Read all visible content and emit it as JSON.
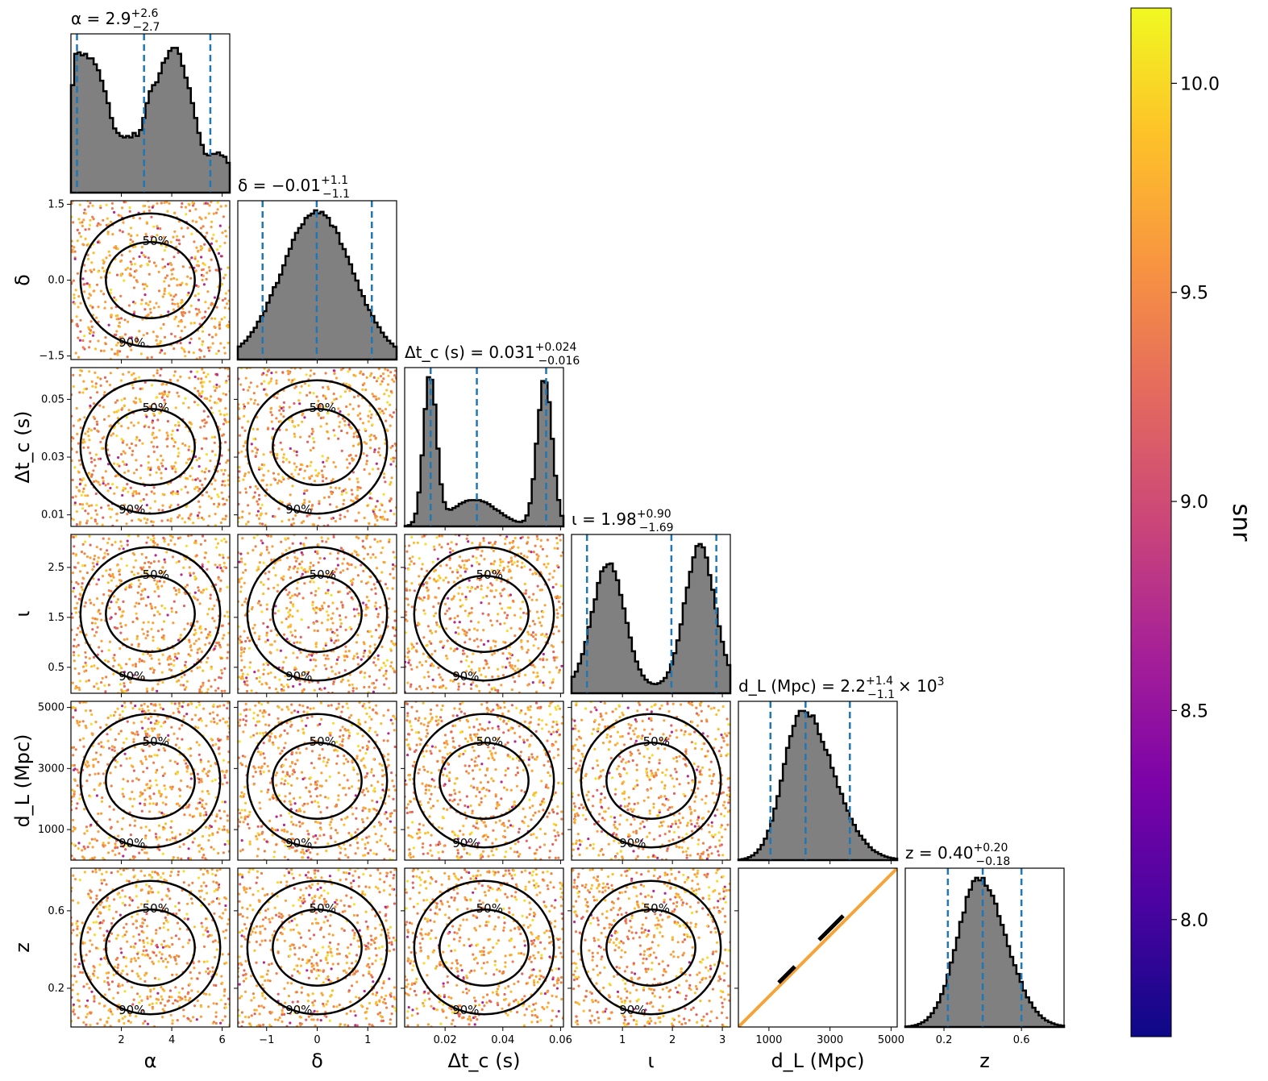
{
  "chart_data": {
    "type": "corner",
    "parameters": [
      {
        "key": "alpha",
        "symbol": "α",
        "axis_label": "α",
        "title": "α = 2.9",
        "median": 2.9,
        "err_plus": 2.6,
        "err_minus": 2.7,
        "sup": "+2.6",
        "sub": "−2.7",
        "range": [
          0.0,
          6.3
        ],
        "ticks": [
          2,
          4,
          6
        ],
        "tick_labels": [
          "2",
          "4",
          "6"
        ],
        "quantiles": [
          0.24,
          2.9,
          5.53
        ],
        "histogram": [
          0.72,
          0.93,
          0.94,
          0.92,
          0.93,
          0.9,
          0.9,
          0.86,
          0.82,
          0.75,
          0.68,
          0.6,
          0.5,
          0.43,
          0.4,
          0.38,
          0.37,
          0.38,
          0.37,
          0.4,
          0.38,
          0.42,
          0.5,
          0.6,
          0.68,
          0.72,
          0.74,
          0.8,
          0.87,
          0.9,
          0.95,
          0.97,
          0.97,
          0.93,
          0.85,
          0.77,
          0.7,
          0.6,
          0.5,
          0.4,
          0.32,
          0.26,
          0.25,
          0.26,
          0.26,
          0.27,
          0.25,
          0.24,
          0.2
        ]
      },
      {
        "key": "delta",
        "symbol": "δ",
        "axis_label": "δ",
        "title": "δ = −0.01",
        "median": -0.01,
        "err_plus": 1.1,
        "err_minus": 1.1,
        "sup": "+1.1",
        "sub": "−1.1",
        "range": [
          -1.57,
          1.57
        ],
        "ticks": [
          -1,
          0,
          1
        ],
        "tick_labels": [
          "−1",
          "0",
          "1"
        ],
        "ticks_y": [
          -1.5,
          0,
          1.5
        ],
        "tick_labels_y": [
          "−1.5",
          "0.0",
          "1.5"
        ],
        "quantiles": [
          -1.08,
          -0.01,
          1.08
        ]
      },
      {
        "key": "dtc",
        "symbol": "Δt_c (s)",
        "axis_label": "Δt_c (s)",
        "title": "Δt_c (s) = 0.031",
        "median": 0.031,
        "err_plus": 0.024,
        "err_minus": 0.016,
        "sup": "+0.024",
        "sub": "−0.016",
        "range": [
          0.006,
          0.061
        ],
        "ticks": [
          0.02,
          0.04,
          0.06
        ],
        "tick_labels": [
          "0.02",
          "0.04",
          "0.06"
        ],
        "ticks_y": [
          0.01,
          0.03,
          0.05
        ],
        "tick_labels_y": [
          "0.01",
          "0.03",
          "0.05"
        ],
        "quantiles": [
          0.015,
          0.031,
          0.055
        ]
      },
      {
        "key": "iota",
        "symbol": "ι",
        "axis_label": "ι",
        "title": "ι = 1.98",
        "median": 1.98,
        "err_plus": 0.9,
        "err_minus": 1.69,
        "sup": "+0.90",
        "sub": "−1.69",
        "range": [
          -0.02,
          3.16
        ],
        "ticks": [
          1,
          2,
          3
        ],
        "tick_labels": [
          "1",
          "2",
          "3"
        ],
        "ticks_y": [
          0.5,
          1.5,
          2.5
        ],
        "tick_labels_y": [
          "0.5",
          "1.5",
          "2.5"
        ],
        "quantiles": [
          0.29,
          1.98,
          2.88
        ]
      },
      {
        "key": "dL",
        "symbol": "d_L (Mpc)",
        "axis_label": "d_L (Mpc)",
        "title": "d_L (Mpc) = 2.2",
        "median": 2200,
        "err_plus": 1400,
        "err_minus": 1100,
        "sup": "+1.4",
        "sub": "−1.1",
        "title_suffix": "× 10",
        "title_exp": "3",
        "range": [
          0,
          5200
        ],
        "ticks": [
          1000,
          3000,
          5000
        ],
        "tick_labels": [
          "1000",
          "3000",
          "5000"
        ],
        "ticks_y": [
          1000,
          3000,
          5000
        ],
        "tick_labels_y": [
          "1000",
          "3000",
          "5000"
        ],
        "quantiles": [
          1050,
          2200,
          3650
        ]
      },
      {
        "key": "z",
        "symbol": "z",
        "axis_label": "z",
        "title": "z = 0.40",
        "median": 0.4,
        "err_plus": 0.2,
        "err_minus": 0.18,
        "sup": "+0.20",
        "sub": "−0.18",
        "range": [
          0.0,
          0.82
        ],
        "ticks": [
          0.2,
          0.6
        ],
        "tick_labels": [
          "0.2",
          "0.6"
        ],
        "ticks_y": [
          0.2,
          0.6
        ],
        "tick_labels_y": [
          "0.2",
          "0.6"
        ],
        "quantiles": [
          0.22,
          0.4,
          0.6
        ]
      }
    ],
    "contour_levels": [
      "50%",
      "90%"
    ],
    "colorbar": {
      "label": "snr",
      "range": [
        7.72,
        10.18
      ],
      "ticks": [
        8.0,
        8.5,
        9.0,
        9.5,
        10.0
      ],
      "tick_labels": [
        "8.0",
        "8.5",
        "9.0",
        "9.5",
        "10.0"
      ],
      "colormap": "plasma"
    },
    "colors": {
      "hist_fill": "#808080",
      "quantile_line": "#1f77b4",
      "contour": "#000000"
    }
  }
}
